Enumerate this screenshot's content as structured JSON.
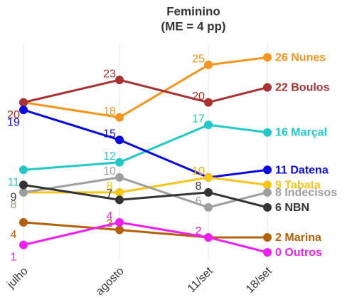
{
  "chart_data": {
    "type": "line",
    "title": "Feminino",
    "subtitle": "(ME = 4 pp)",
    "categories": [
      "julho",
      "agosto",
      "11/set",
      "18/set"
    ],
    "ylim": [
      0,
      27
    ],
    "grid": true,
    "series": [
      {
        "name": "Nunes",
        "color": "#f7941d",
        "values": [
          20,
          18,
          25,
          26
        ]
      },
      {
        "name": "Boulos",
        "color": "#a83232",
        "values": [
          20,
          23,
          20,
          22
        ]
      },
      {
        "name": "Marçal",
        "color": "#22c8c8",
        "values": [
          11,
          12,
          17,
          16
        ]
      },
      {
        "name": "Datena",
        "color": "#0a0ae0",
        "values": [
          19,
          15,
          10,
          11
        ]
      },
      {
        "name": "Tabata",
        "color": "#f5c518",
        "values": [
          8,
          8,
          10,
          9
        ]
      },
      {
        "name": "Indecisos",
        "color": "#9e9e9e",
        "values": [
          8,
          10,
          6,
          8
        ]
      },
      {
        "name": "NBN",
        "color": "#333333",
        "values": [
          9,
          7,
          8,
          6
        ]
      },
      {
        "name": "Marina",
        "color": "#b5600c",
        "values": [
          4,
          3,
          2,
          2
        ]
      },
      {
        "name": "Outros",
        "color": "#f01ef0",
        "values": [
          1,
          4,
          2,
          0
        ]
      }
    ]
  }
}
